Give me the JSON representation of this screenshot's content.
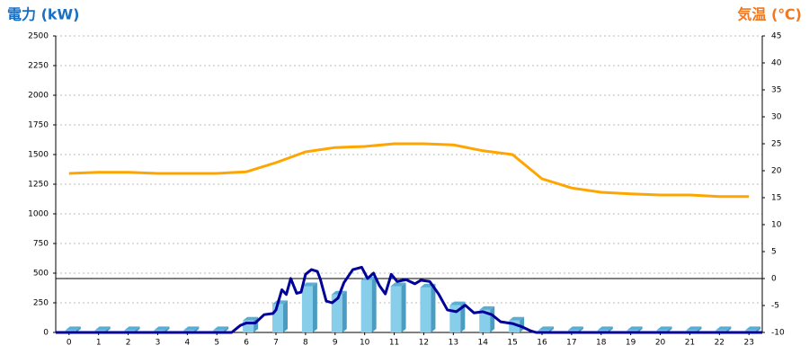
{
  "chart_data": {
    "type": "combo",
    "y_label": "電力 (kW)",
    "y2_label": "気温 (℃)",
    "categories": [
      "0",
      "1",
      "2",
      "3",
      "4",
      "5",
      "6",
      "7",
      "8",
      "9",
      "10",
      "11",
      "12",
      "13",
      "14",
      "15",
      "16",
      "17",
      "18",
      "19",
      "20",
      "21",
      "22",
      "23"
    ],
    "xlim": [
      -0.45,
      23.45
    ],
    "ylim": [
      0,
      2500
    ],
    "yticks": [
      0,
      250,
      500,
      750,
      1000,
      1250,
      1500,
      1750,
      2000,
      2250,
      2500
    ],
    "y2lim": [
      -10,
      45
    ],
    "y2ticks": [
      -10,
      -5,
      0,
      5,
      10,
      15,
      20,
      25,
      30,
      35,
      40,
      45
    ],
    "grid": true,
    "series": [
      {
        "type": "bar",
        "color": "#87ceeb",
        "values": [
          20,
          20,
          20,
          20,
          20,
          20,
          100,
          240,
          390,
          320,
          440,
          390,
          380,
          230,
          190,
          100,
          20,
          20,
          20,
          20,
          20,
          20,
          20,
          20
        ]
      },
      {
        "type": "line",
        "color": "#000099",
        "x": [
          -0.45,
          5.5,
          5.8,
          6,
          6.3,
          6.6,
          6.9,
          7,
          7.2,
          7.35,
          7.5,
          7.7,
          7.85,
          8,
          8.2,
          8.4,
          8.5,
          8.7,
          8.9,
          9.1,
          9.3,
          9.6,
          9.9,
          10.1,
          10.3,
          10.5,
          10.7,
          10.9,
          11.1,
          11.4,
          11.7,
          11.9,
          12.2,
          12.5,
          12.8,
          13.1,
          13.4,
          13.7,
          14,
          14.3,
          14.6,
          15,
          15.3,
          15.6,
          15.8,
          23.45
        ],
        "values": [
          0,
          0,
          60,
          80,
          80,
          150,
          160,
          190,
          360,
          320,
          455,
          330,
          340,
          490,
          530,
          515,
          450,
          265,
          250,
          290,
          420,
          530,
          550,
          455,
          500,
          395,
          325,
          490,
          430,
          445,
          410,
          440,
          430,
          325,
          190,
          175,
          230,
          165,
          175,
          150,
          90,
          75,
          50,
          15,
          0,
          0
        ]
      },
      {
        "type": "line",
        "axis": "y2",
        "color": "#ffa500",
        "values": [
          19.5,
          19.7,
          19.7,
          19.5,
          19.5,
          19.5,
          19.8,
          21.5,
          23.5,
          24.3,
          24.5,
          25,
          25,
          24.8,
          23.7,
          23,
          18.5,
          16.8,
          16,
          15.7,
          15.5,
          15.5,
          15.2,
          15.2
        ]
      }
    ]
  }
}
